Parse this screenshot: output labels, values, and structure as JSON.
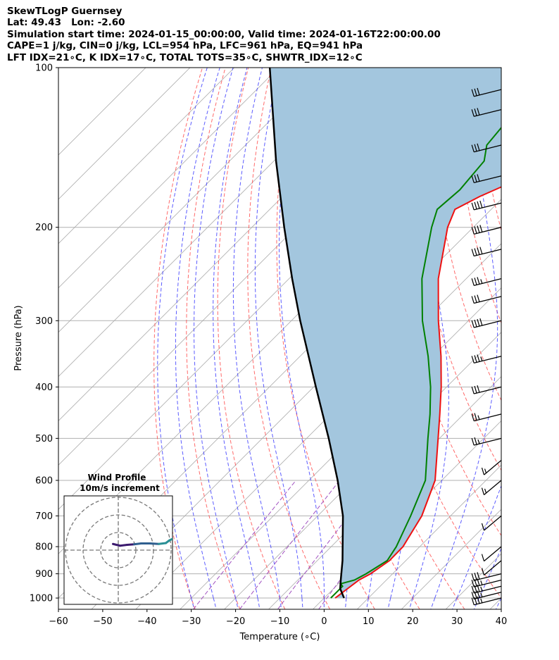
{
  "header": {
    "line1": "SkewTLogP Guernsey",
    "line2": "Lat: 49.43   Lon: -2.60",
    "line3": "Simulation start time: 2024-01-15_00:00:00, Valid time: 2024-01-16T22:00:00.00",
    "line4": "CAPE=1 j/kg, CIN=0 j/kg, LCL=954 hPa, LFC=961 hPa, EQ=941 hPa",
    "line5": "LFT IDX=21∘C, K IDX=17∘C, TOTAL TOTS=35∘C, SHWTR_IDX=12∘C"
  },
  "chart_data": [
    {
      "type": "line",
      "kind": "skew-t log-p",
      "xlabel": "Temperature (∘C)",
      "ylabel": "Pressure (hPa)",
      "xlim": [
        -60,
        40
      ],
      "ylim": [
        1050,
        100
      ],
      "y_scale": "log",
      "x_ticks": [
        -60,
        -50,
        -40,
        -30,
        -20,
        -10,
        0,
        10,
        20,
        30,
        40
      ],
      "y_ticks": [
        100,
        200,
        300,
        400,
        500,
        600,
        700,
        800,
        900,
        1000
      ],
      "grid": true,
      "colors": {
        "temperature": "#ee1111",
        "dewpoint": "#008000",
        "parcel": "#000000",
        "cape_fill": "#a3c6de",
        "dry_adiabats": "#ff5050",
        "moist_adiabats": "#4040ff",
        "mixing_ratio": "#a050c0",
        "isotherms": "#aaaaaa"
      },
      "series": [
        {
          "role": "temperature",
          "points": [
            {
              "p": 1000,
              "t": 2.5
            },
            {
              "p": 925,
              "t": 3.8
            },
            {
              "p": 900,
              "t": 5.0
            },
            {
              "p": 850,
              "t": 6.3
            },
            {
              "p": 800,
              "t": 6.2
            },
            {
              "p": 700,
              "t": 3.5
            },
            {
              "p": 600,
              "t": -1.5
            },
            {
              "p": 500,
              "t": -10.3
            },
            {
              "p": 450,
              "t": -15.4
            },
            {
              "p": 400,
              "t": -21.2
            },
            {
              "p": 350,
              "t": -28.2
            },
            {
              "p": 300,
              "t": -36.8
            },
            {
              "p": 250,
              "t": -46.3
            },
            {
              "p": 200,
              "t": -55.8
            },
            {
              "p": 185,
              "t": -58.2
            },
            {
              "p": 175,
              "t": -55.5
            },
            {
              "p": 160,
              "t": -49.6
            },
            {
              "p": 150,
              "t": -46.0
            },
            {
              "p": 130,
              "t": -46.1
            },
            {
              "p": 115,
              "t": -46.4
            },
            {
              "p": 100,
              "t": -46.2
            }
          ]
        },
        {
          "role": "dewpoint",
          "points": [
            {
              "p": 1000,
              "t": 1.5
            },
            {
              "p": 950,
              "t": 1.5
            },
            {
              "p": 940,
              "t": 0.5
            },
            {
              "p": 925,
              "t": 2.8
            },
            {
              "p": 900,
              "t": 4.0
            },
            {
              "p": 850,
              "t": 5.8
            },
            {
              "p": 800,
              "t": 4.7
            },
            {
              "p": 700,
              "t": 1.0
            },
            {
              "p": 600,
              "t": -3.7
            },
            {
              "p": 500,
              "t": -12.6
            },
            {
              "p": 450,
              "t": -17.6
            },
            {
              "p": 400,
              "t": -23.6
            },
            {
              "p": 350,
              "t": -31.1
            },
            {
              "p": 300,
              "t": -40.4
            },
            {
              "p": 250,
              "t": -50.0
            },
            {
              "p": 200,
              "t": -59.4
            },
            {
              "p": 185,
              "t": -62.2
            },
            {
              "p": 170,
              "t": -61.5
            },
            {
              "p": 150,
              "t": -62.5
            },
            {
              "p": 140,
              "t": -65.5
            },
            {
              "p": 125,
              "t": -66.5
            },
            {
              "p": 115,
              "t": -63.7
            },
            {
              "p": 100,
              "t": -60.0
            }
          ]
        },
        {
          "role": "parcel",
          "points": [
            {
              "p": 1000,
              "t": 4.5
            },
            {
              "p": 960,
              "t": 1.5
            },
            {
              "p": 925,
              "t": -0.3
            },
            {
              "p": 850,
              "t": -4.3
            },
            {
              "p": 700,
              "t": -14.3
            },
            {
              "p": 600,
              "t": -23.5
            },
            {
              "p": 500,
              "t": -35.0
            },
            {
              "p": 400,
              "t": -49.5
            },
            {
              "p": 300,
              "t": -68.0
            },
            {
              "p": 250,
              "t": -79.3
            },
            {
              "p": 200,
              "t": -92.7
            },
            {
              "p": 150,
              "t": -109.5
            },
            {
              "p": 100,
              "t": -132.0
            }
          ]
        }
      ],
      "wind_barbs": [
        {
          "p": 1000,
          "kt": 35
        },
        {
          "p": 975,
          "kt": 35
        },
        {
          "p": 950,
          "kt": 35
        },
        {
          "p": 925,
          "kt": 35
        },
        {
          "p": 900,
          "kt": 30
        },
        {
          "p": 850,
          "kt": 10
        },
        {
          "p": 800,
          "kt": 10
        },
        {
          "p": 700,
          "kt": 10
        },
        {
          "p": 600,
          "kt": 15
        },
        {
          "p": 550,
          "kt": 15
        },
        {
          "p": 500,
          "kt": 25
        },
        {
          "p": 450,
          "kt": 25
        },
        {
          "p": 400,
          "kt": 30
        },
        {
          "p": 350,
          "kt": 35
        },
        {
          "p": 300,
          "kt": 40
        },
        {
          "p": 270,
          "kt": 30
        },
        {
          "p": 250,
          "kt": 35
        },
        {
          "p": 220,
          "kt": 40
        },
        {
          "p": 200,
          "kt": 40
        },
        {
          "p": 180,
          "kt": 40
        },
        {
          "p": 160,
          "kt": 30
        },
        {
          "p": 140,
          "kt": 30
        },
        {
          "p": 120,
          "kt": 30
        },
        {
          "p": 110,
          "kt": 30
        }
      ]
    },
    {
      "type": "line",
      "kind": "hodograph",
      "title": "Wind Profile",
      "subtitle": "10m/s increment",
      "ring_increment": 10,
      "rings": [
        10,
        20,
        30
      ],
      "points": [
        {
          "u": -3.0,
          "v": 3.5
        },
        {
          "u": -1.0,
          "v": 3.0
        },
        {
          "u": 1.0,
          "v": 2.5
        },
        {
          "u": 5.0,
          "v": 3.0
        },
        {
          "u": 9.0,
          "v": 3.3
        },
        {
          "u": 13.0,
          "v": 3.8
        },
        {
          "u": 18.0,
          "v": 3.8
        },
        {
          "u": 23.0,
          "v": 3.5
        },
        {
          "u": 27.0,
          "v": 4.0
        },
        {
          "u": 29.0,
          "v": 5.5
        },
        {
          "u": 31.0,
          "v": 6.5
        },
        {
          "u": 32.5,
          "v": 7.0
        }
      ]
    }
  ]
}
